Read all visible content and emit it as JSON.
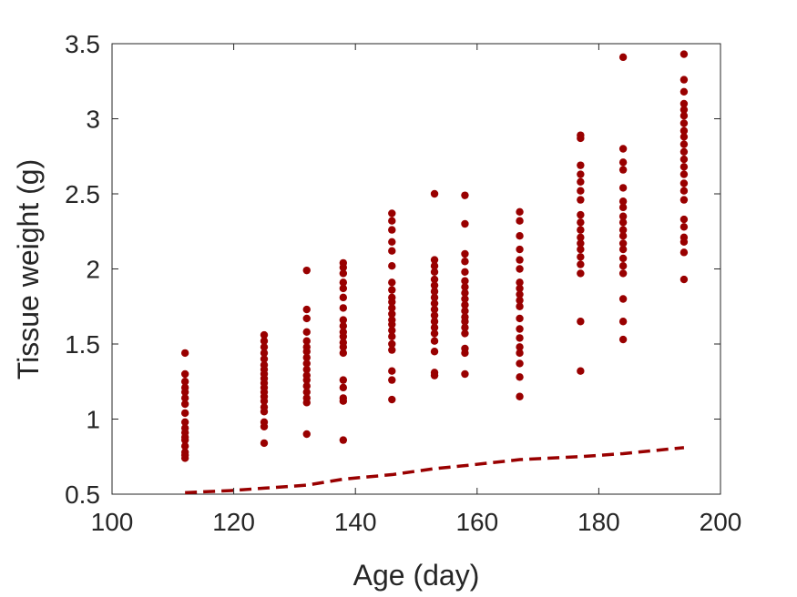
{
  "chart_data": {
    "type": "scatter",
    "title": "",
    "xlabel": "Age (day)",
    "ylabel": "Tissue weight (g)",
    "xlim": [
      100,
      200
    ],
    "ylim": [
      0.5,
      3.5
    ],
    "xticks": [
      100,
      120,
      140,
      160,
      180,
      200
    ],
    "yticks": [
      0.5,
      1,
      1.5,
      2,
      2.5,
      3,
      3.5
    ],
    "xtick_labels": [
      "100",
      "120",
      "140",
      "160",
      "180",
      "200"
    ],
    "ytick_labels": [
      "0.5",
      "1",
      "1.5",
      "2",
      "2.5",
      "3",
      "3.5"
    ],
    "grid": false,
    "legend": "none",
    "color": "#990000",
    "series": [
      {
        "type": "scatter",
        "groups": [
          {
            "x": 112,
            "y": [
              0.74,
              0.76,
              0.78,
              0.82,
              0.86,
              0.88,
              0.91,
              0.94,
              0.98,
              1.04,
              1.1,
              1.14,
              1.18,
              1.21,
              1.25,
              1.3,
              1.44
            ]
          },
          {
            "x": 125,
            "y": [
              0.84,
              0.95,
              0.98,
              1.05,
              1.08,
              1.12,
              1.15,
              1.18,
              1.21,
              1.24,
              1.27,
              1.3,
              1.33,
              1.36,
              1.4,
              1.44,
              1.48,
              1.52,
              1.56
            ]
          },
          {
            "x": 132,
            "y": [
              0.9,
              1.11,
              1.14,
              1.18,
              1.22,
              1.26,
              1.29,
              1.33,
              1.37,
              1.41,
              1.45,
              1.48,
              1.52,
              1.58,
              1.67,
              1.73,
              1.99
            ]
          },
          {
            "x": 138,
            "y": [
              0.86,
              1.12,
              1.14,
              1.21,
              1.26,
              1.44,
              1.48,
              1.51,
              1.55,
              1.58,
              1.62,
              1.66,
              1.74,
              1.81,
              1.87,
              1.91,
              1.97,
              2.01,
              2.04
            ]
          },
          {
            "x": 146,
            "y": [
              1.13,
              1.26,
              1.32,
              1.46,
              1.5,
              1.55,
              1.59,
              1.63,
              1.66,
              1.7,
              1.74,
              1.78,
              1.81,
              1.86,
              1.91,
              2.02,
              2.12,
              2.18,
              2.26,
              2.32,
              2.37
            ]
          },
          {
            "x": 153,
            "y": [
              1.29,
              1.31,
              1.45,
              1.52,
              1.57,
              1.61,
              1.65,
              1.69,
              1.73,
              1.77,
              1.81,
              1.85,
              1.89,
              1.93,
              1.98,
              2.02,
              2.06,
              2.5
            ]
          },
          {
            "x": 158,
            "y": [
              1.3,
              1.44,
              1.47,
              1.57,
              1.61,
              1.65,
              1.68,
              1.72,
              1.76,
              1.8,
              1.84,
              1.88,
              1.92,
              1.98,
              2.05,
              2.1,
              2.3,
              2.49
            ]
          },
          {
            "x": 167,
            "y": [
              1.15,
              1.28,
              1.37,
              1.44,
              1.48,
              1.54,
              1.6,
              1.67,
              1.75,
              1.79,
              1.83,
              1.87,
              1.91,
              2.0,
              2.06,
              2.13,
              2.22,
              2.32,
              2.38
            ]
          },
          {
            "x": 177,
            "y": [
              1.32,
              1.65,
              1.97,
              2.03,
              2.08,
              2.13,
              2.17,
              2.21,
              2.26,
              2.31,
              2.36,
              2.46,
              2.52,
              2.58,
              2.63,
              2.69,
              2.87,
              2.89
            ]
          },
          {
            "x": 184,
            "y": [
              1.53,
              1.65,
              1.8,
              1.97,
              2.02,
              2.07,
              2.13,
              2.17,
              2.22,
              2.26,
              2.31,
              2.35,
              2.41,
              2.45,
              2.54,
              2.66,
              2.71,
              2.8,
              3.41
            ]
          },
          {
            "x": 194,
            "y": [
              1.93,
              2.11,
              2.18,
              2.21,
              2.28,
              2.33,
              2.46,
              2.52,
              2.57,
              2.63,
              2.68,
              2.73,
              2.78,
              2.83,
              2.88,
              2.92,
              2.97,
              3.02,
              3.06,
              3.1,
              3.18,
              3.26,
              3.43
            ]
          }
        ]
      },
      {
        "type": "line",
        "style": "dashed",
        "x": [
          112,
          120,
          125,
          132,
          138,
          146,
          153,
          158,
          167,
          177,
          184,
          194
        ],
        "y": [
          0.51,
          0.525,
          0.54,
          0.56,
          0.6,
          0.63,
          0.67,
          0.69,
          0.73,
          0.75,
          0.77,
          0.81
        ]
      }
    ]
  }
}
